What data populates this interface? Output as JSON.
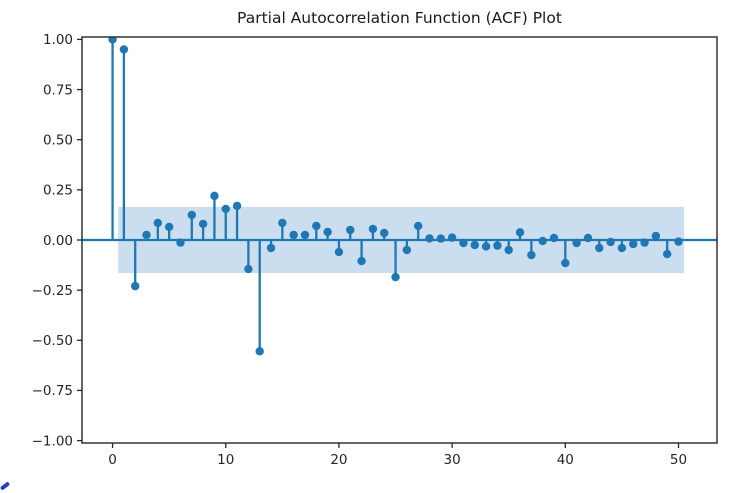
{
  "figure": {
    "title": "Partial Autocorrelation Function (ACF) Plot",
    "background": "#ffffff"
  },
  "chart_data": {
    "type": "scatter",
    "subtype": "stem (partial autocorrelation plot)",
    "title": "Partial Autocorrelation Function (ACF) Plot",
    "xlabel": "",
    "ylabel": "",
    "x": [
      0,
      1,
      2,
      3,
      4,
      5,
      6,
      7,
      8,
      9,
      10,
      11,
      12,
      13,
      14,
      15,
      16,
      17,
      18,
      19,
      20,
      21,
      22,
      23,
      24,
      25,
      26,
      27,
      28,
      29,
      30,
      31,
      32,
      33,
      34,
      35,
      36,
      37,
      38,
      39,
      40,
      41,
      42,
      43,
      44,
      45,
      46,
      47,
      48,
      49,
      50
    ],
    "y": [
      1.0,
      0.95,
      -0.23,
      0.025,
      0.085,
      0.065,
      -0.013,
      0.125,
      0.08,
      0.22,
      0.155,
      0.17,
      -0.145,
      -0.555,
      -0.04,
      0.085,
      0.025,
      0.025,
      0.07,
      0.04,
      -0.06,
      0.05,
      -0.105,
      0.055,
      0.035,
      -0.185,
      -0.05,
      0.07,
      0.008,
      0.007,
      0.012,
      -0.015,
      -0.025,
      -0.032,
      -0.028,
      -0.05,
      0.038,
      -0.075,
      -0.005,
      0.01,
      -0.115,
      -0.015,
      0.01,
      -0.04,
      -0.01,
      -0.04,
      -0.02,
      -0.013,
      0.02,
      -0.07,
      -0.008
    ],
    "confidence_band": {
      "y_low": -0.165,
      "y_high": 0.165,
      "x_start": 0.5,
      "x_end": 50.5
    },
    "zero_line_y": 0,
    "xlim": [
      -2.7,
      53.4
    ],
    "ylim": [
      -1.012,
      1.012
    ],
    "x_ticks": {
      "values": [
        0,
        10,
        20,
        30,
        40,
        50
      ],
      "labels": [
        "0",
        "10",
        "20",
        "30",
        "40",
        "50"
      ]
    },
    "y_ticks": {
      "values": [
        1.0,
        0.75,
        0.5,
        0.25,
        0.0,
        -0.25,
        -0.5,
        -0.75,
        -1.0
      ],
      "labels": [
        "1.00",
        "0.75",
        "0.50",
        "0.25",
        "0.00",
        "−0.25",
        "−0.50",
        "−0.75",
        "−1.00"
      ]
    },
    "grid": false,
    "legend": null,
    "colors": {
      "stem": "#1f77b4",
      "marker": "#1f77b4",
      "zero_line": "#1f77b4",
      "band": "#cbdeef",
      "axis": "#262626",
      "tick_text": "#262626",
      "title_text": "#1a1a1a",
      "artifact": "#2d3bbf"
    }
  }
}
